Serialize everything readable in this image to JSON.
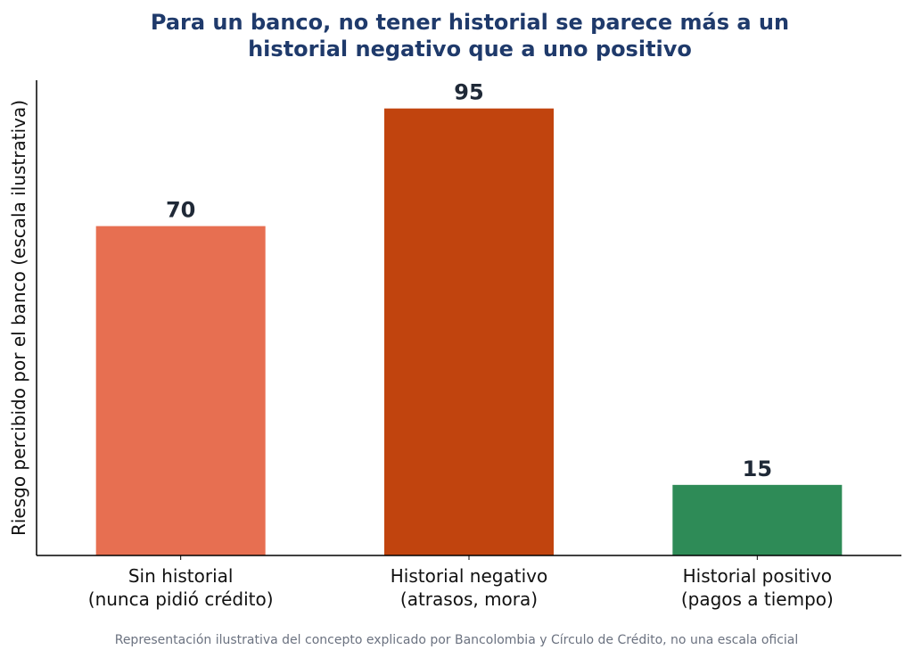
{
  "chart_data": {
    "type": "bar",
    "title_lines": [
      "Para un banco, no tener historial se parece más a un",
      "historial negativo que a uno positivo"
    ],
    "ylabel": "Riesgo percibido por el banco (escala ilustrativa)",
    "xlabel": "",
    "categories": [
      [
        "Sin historial",
        "(nunca pidió crédito)"
      ],
      [
        "Historial negativo",
        "(atrasos, mora)"
      ],
      [
        "Historial positivo",
        "(pagos a tiempo)"
      ]
    ],
    "values": [
      70,
      95,
      15
    ],
    "data_labels": [
      "70",
      "95",
      "15"
    ],
    "bar_colors": [
      "#e76f51",
      "#c1440e",
      "#2e8b57"
    ],
    "ylim": [
      0,
      101
    ],
    "grid": false,
    "yticks_visible": false,
    "caption": "Representación ilustrativa del concepto explicado por Bancolombia y Círculo de Crédito, no una escala oficial"
  },
  "colors": {
    "title": "#1f3a6b",
    "bar_label": "#1f2937",
    "tick_label": "#111111",
    "caption": "#6b7280",
    "axis": "#000000"
  }
}
